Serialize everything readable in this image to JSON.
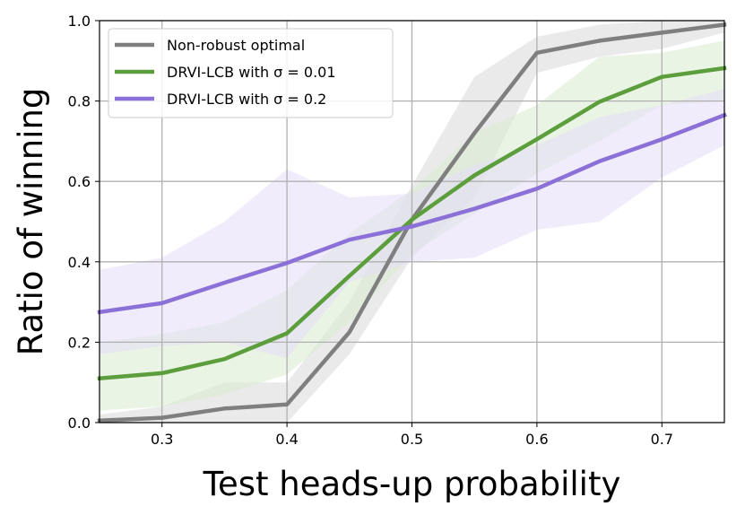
{
  "chart_data": {
    "type": "line",
    "xlabel": "Test heads-up probability",
    "ylabel": "Ratio of winning",
    "xlim": [
      0.25,
      0.75
    ],
    "ylim": [
      0.0,
      1.0
    ],
    "xticks": [
      0.3,
      0.4,
      0.5,
      0.6,
      0.7
    ],
    "xtick_labels": [
      "0.3",
      "0.4",
      "0.5",
      "0.6",
      "0.7"
    ],
    "yticks": [
      0.0,
      0.2,
      0.4,
      0.6,
      0.8,
      1.0
    ],
    "ytick_labels": [
      "0.0",
      "0.2",
      "0.4",
      "0.6",
      "0.8",
      "1.0"
    ],
    "grid": true,
    "legend_position": "top-left",
    "x": [
      0.25,
      0.3,
      0.35,
      0.4,
      0.45,
      0.5,
      0.55,
      0.6,
      0.65,
      0.7,
      0.75
    ],
    "series": [
      {
        "name": "Non-robust optimal",
        "color": "#7f7f7f",
        "band_color": "#d9d9d9",
        "values": [
          0.005,
          0.012,
          0.035,
          0.045,
          0.225,
          0.505,
          0.72,
          0.92,
          0.95,
          0.97,
          0.99
        ],
        "lower": [
          0.0,
          0.0,
          0.0,
          0.0,
          0.17,
          0.41,
          0.56,
          0.87,
          0.91,
          0.93,
          0.97
        ],
        "upper": [
          0.02,
          0.04,
          0.1,
          0.1,
          0.3,
          0.59,
          0.86,
          0.96,
          0.99,
          1.0,
          1.0
        ]
      },
      {
        "name": "DRVI-LCB with σ = 0.01",
        "color": "#5c9e3c",
        "band_color": "#d8ebcf",
        "values": [
          0.11,
          0.123,
          0.158,
          0.222,
          0.365,
          0.505,
          0.615,
          0.705,
          0.798,
          0.86,
          0.882
        ],
        "lower": [
          0.03,
          0.04,
          0.07,
          0.12,
          0.25,
          0.42,
          0.52,
          0.62,
          0.7,
          0.79,
          0.8
        ],
        "upper": [
          0.2,
          0.22,
          0.25,
          0.33,
          0.47,
          0.58,
          0.72,
          0.79,
          0.91,
          0.92,
          0.95
        ]
      },
      {
        "name": "DRVI-LCB with σ = 0.2",
        "color": "#8b70d8",
        "band_color": "#e4ddf7",
        "values": [
          0.275,
          0.297,
          0.348,
          0.397,
          0.455,
          0.488,
          0.532,
          0.582,
          0.65,
          0.705,
          0.765
        ],
        "lower": [
          0.17,
          0.19,
          0.2,
          0.16,
          0.35,
          0.4,
          0.41,
          0.48,
          0.5,
          0.61,
          0.69
        ],
        "upper": [
          0.38,
          0.41,
          0.5,
          0.63,
          0.56,
          0.57,
          0.64,
          0.69,
          0.76,
          0.79,
          0.83
        ]
      }
    ]
  }
}
